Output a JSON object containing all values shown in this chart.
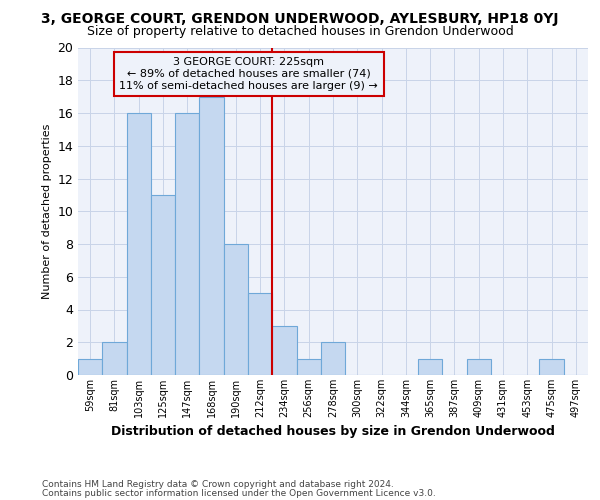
{
  "title": "3, GEORGE COURT, GRENDON UNDERWOOD, AYLESBURY, HP18 0YJ",
  "subtitle": "Size of property relative to detached houses in Grendon Underwood",
  "xlabel": "Distribution of detached houses by size in Grendon Underwood",
  "ylabel": "Number of detached properties",
  "footer_line1": "Contains HM Land Registry data © Crown copyright and database right 2024.",
  "footer_line2": "Contains public sector information licensed under the Open Government Licence v3.0.",
  "bin_labels": [
    "59sqm",
    "81sqm",
    "103sqm",
    "125sqm",
    "147sqm",
    "168sqm",
    "190sqm",
    "212sqm",
    "234sqm",
    "256sqm",
    "278sqm",
    "300sqm",
    "322sqm",
    "344sqm",
    "365sqm",
    "387sqm",
    "409sqm",
    "431sqm",
    "453sqm",
    "475sqm",
    "497sqm"
  ],
  "bar_heights": [
    1,
    2,
    16,
    11,
    16,
    17,
    8,
    5,
    3,
    1,
    2,
    0,
    0,
    0,
    1,
    0,
    1,
    0,
    0,
    1,
    0
  ],
  "bar_color": "#c5d8f0",
  "bar_edge_color": "#6fa8d8",
  "vline_color": "#cc0000",
  "annotation_title": "3 GEORGE COURT: 225sqm",
  "annotation_line2": "← 89% of detached houses are smaller (74)",
  "annotation_line3": "11% of semi-detached houses are larger (9) →",
  "annotation_box_edge": "#cc0000",
  "bg_color": "#ffffff",
  "plot_bg_color": "#eef2fa",
  "grid_color": "#c8d4e8",
  "ylim": [
    0,
    20
  ],
  "vline_at_index": 8.0
}
